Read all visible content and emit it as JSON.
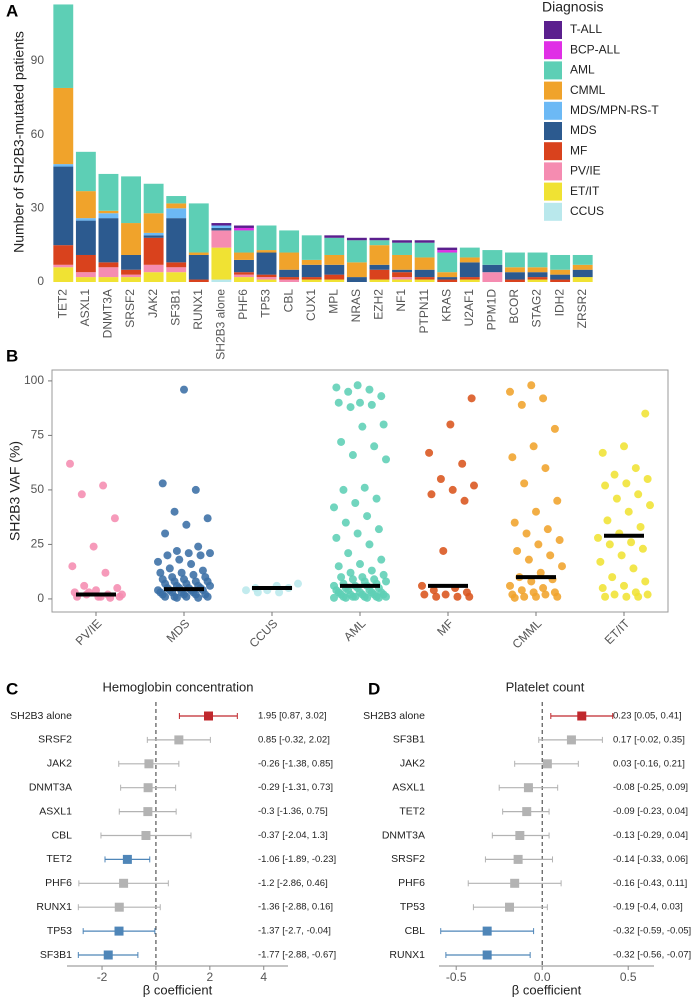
{
  "chart_data": [
    {
      "type": "bar",
      "stacked": true,
      "label": "A",
      "ylabel": "Number of SH2B3-mutated patients",
      "legend_title": "Diagnosis",
      "legend": "top-right",
      "categories": [
        "TET2",
        "ASXL1",
        "DNMT3A",
        "SRSF2",
        "JAK2",
        "SF3B1",
        "RUNX1",
        "SH2B3 alone",
        "PHF6",
        "TP53",
        "CBL",
        "CUX1",
        "MPL",
        "NRAS",
        "EZH2",
        "NF1",
        "PTPN11",
        "KRAS",
        "U2AF1",
        "PPM1D",
        "BCOR",
        "STAG2",
        "IDH2",
        "ZRSR2"
      ],
      "series": [
        {
          "name": "T-ALL",
          "color": "#5b1f8e",
          "values": [
            0,
            0,
            0,
            0,
            0,
            0,
            0,
            1,
            1,
            0,
            0,
            0,
            1,
            1,
            1,
            1,
            1,
            1,
            0,
            0,
            0,
            0,
            0,
            0
          ]
        },
        {
          "name": "BCP-ALL",
          "color": "#e02fe6",
          "values": [
            0,
            0,
            0,
            0,
            0,
            0,
            0,
            0,
            1,
            0,
            0,
            0,
            0,
            0,
            0,
            0,
            0,
            1,
            0,
            0,
            0,
            0,
            0,
            0
          ]
        },
        {
          "name": "AML",
          "color": "#5dcfb5",
          "values": [
            34,
            16,
            15,
            19,
            12,
            3,
            20,
            0,
            9,
            10,
            9,
            10,
            7,
            9,
            2,
            5,
            6,
            8,
            4,
            6,
            6,
            6,
            6,
            4
          ]
        },
        {
          "name": "CMML",
          "color": "#f0a32b",
          "values": [
            31,
            11,
            1,
            13,
            8,
            2,
            1,
            0,
            3,
            1,
            7,
            2,
            4,
            6,
            8,
            6,
            5,
            2,
            2,
            0,
            2,
            2,
            2,
            2
          ]
        },
        {
          "name": "MDS/MPN-RS-T",
          "color": "#6cb9f5",
          "values": [
            1,
            1,
            2,
            0,
            1,
            4,
            0,
            1,
            0,
            0,
            0,
            0,
            0,
            0,
            0,
            0,
            0,
            0,
            0,
            0,
            0,
            0,
            0,
            0
          ]
        },
        {
          "name": "MDS",
          "color": "#2c5a8f",
          "values": [
            32,
            14,
            18,
            6,
            1,
            18,
            10,
            1,
            5,
            9,
            3,
            5,
            4,
            2,
            2,
            1,
            3,
            1,
            6,
            3,
            3,
            2,
            2,
            3
          ]
        },
        {
          "name": "MF",
          "color": "#d9421d",
          "values": [
            8,
            7,
            2,
            2,
            11,
            2,
            1,
            0,
            1,
            1,
            1,
            1,
            2,
            0,
            4,
            2,
            1,
            1,
            1,
            0,
            1,
            1,
            1,
            0
          ]
        },
        {
          "name": "PV/IE",
          "color": "#f58cb1",
          "values": [
            1,
            2,
            4,
            1,
            3,
            2,
            0,
            7,
            1,
            1,
            1,
            0,
            0,
            0,
            0,
            1,
            0,
            0,
            0,
            4,
            0,
            0,
            0,
            0
          ]
        },
        {
          "name": "ET/IT",
          "color": "#f0e233",
          "values": [
            6,
            2,
            2,
            2,
            4,
            4,
            0,
            13,
            2,
            1,
            0,
            1,
            1,
            0,
            1,
            1,
            1,
            0,
            1,
            0,
            0,
            1,
            0,
            2
          ]
        },
        {
          "name": "CCUS",
          "color": "#b9e8ec",
          "values": [
            0,
            0,
            0,
            0,
            0,
            0,
            0,
            1,
            0,
            0,
            0,
            0,
            0,
            0,
            0,
            0,
            0,
            0,
            0,
            0,
            0,
            0,
            0,
            0
          ]
        }
      ],
      "ylim": [
        0,
        114
      ],
      "yticks": [
        0,
        30,
        60,
        90
      ]
    },
    {
      "type": "strip",
      "label": "B",
      "ylabel": "SH2B3 VAF (%)",
      "categories": [
        "PV/IE",
        "MDS",
        "CCUS",
        "AML",
        "MF",
        "CMML",
        "ET/IT"
      ],
      "colors": [
        "#f58cb1",
        "#3a6ea5",
        "#b9e8ec",
        "#5dcfb5",
        "#d9541d",
        "#f0a32b",
        "#f0e233"
      ],
      "points": [
        [
          62,
          52,
          48,
          37,
          24,
          15,
          12,
          6,
          5,
          4,
          3,
          2,
          2,
          1,
          1,
          1,
          0.5,
          3,
          2,
          1
        ],
        [
          96,
          53,
          50,
          40,
          37,
          34,
          30,
          24,
          22,
          21,
          21,
          20,
          20,
          18,
          17,
          16,
          14,
          13,
          12,
          12,
          11,
          10,
          10,
          9,
          9,
          8,
          8,
          8,
          7,
          7,
          6,
          6,
          6,
          5,
          5,
          5,
          5,
          4,
          4,
          4,
          4,
          3,
          3,
          3,
          3,
          2,
          2,
          2,
          2,
          1,
          1,
          1,
          1,
          0.5,
          0.5
        ],
        [
          7,
          6,
          5,
          5,
          4,
          4,
          3,
          3
        ],
        [
          98,
          97,
          96,
          95,
          93,
          90,
          90,
          89,
          88,
          80,
          79,
          72,
          70,
          66,
          64,
          51,
          50,
          46,
          44,
          42,
          38,
          35,
          32,
          30,
          28,
          25,
          21,
          18,
          16,
          15,
          13,
          12,
          11,
          10,
          10,
          9,
          9,
          8,
          8,
          7,
          7,
          6,
          6,
          6,
          5,
          5,
          5,
          4,
          4,
          4,
          3,
          3,
          3,
          3,
          2,
          2,
          2,
          2,
          2,
          1,
          1,
          1,
          1,
          1,
          1,
          0.5,
          0.5,
          0.5,
          0.5
        ],
        [
          92,
          80,
          67,
          62,
          55,
          52,
          50,
          48,
          45,
          22,
          6,
          5,
          4,
          3,
          2,
          2,
          1,
          1,
          1
        ],
        [
          98,
          95,
          92,
          89,
          78,
          70,
          65,
          60,
          53,
          45,
          40,
          35,
          32,
          30,
          27,
          25,
          22,
          20,
          18,
          15,
          12,
          10,
          9,
          8,
          6,
          5,
          4,
          3,
          3,
          2,
          2,
          1,
          1,
          1,
          0.5
        ],
        [
          85,
          70,
          67,
          60,
          57,
          55,
          53,
          52,
          48,
          46,
          43,
          40,
          36,
          33,
          30,
          28,
          26,
          25,
          23,
          20,
          17,
          14,
          10,
          8,
          6,
          5,
          3,
          2,
          2,
          1,
          1,
          1
        ]
      ],
      "medians": [
        2,
        4.5,
        5,
        6,
        6,
        10,
        29
      ],
      "ylim": [
        -6,
        105
      ],
      "yticks": [
        0,
        25,
        50,
        75,
        100
      ]
    },
    {
      "type": "forest",
      "label": "C",
      "title": "Hemoglobin concentration",
      "xlabel": "β coefficient",
      "categories": [
        "SH2B3 alone",
        "SRSF2",
        "JAK2",
        "DNMT3A",
        "ASXL1",
        "CBL",
        "TET2",
        "PHF6",
        "RUNX1",
        "TP53",
        "SF3B1"
      ],
      "values": [
        1.95,
        0.85,
        -0.26,
        -0.29,
        -0.3,
        -0.37,
        -1.06,
        -1.2,
        -1.36,
        -1.37,
        -1.77
      ],
      "lower": [
        0.87,
        -0.32,
        -1.38,
        -1.31,
        -1.36,
        -2.04,
        -1.89,
        -2.86,
        -2.88,
        -2.7,
        -2.88
      ],
      "upper": [
        3.02,
        2.02,
        0.85,
        0.73,
        0.75,
        1.3,
        -0.23,
        0.46,
        0.16,
        -0.04,
        -0.67
      ],
      "value_labels": [
        "1.95 [0.87, 3.02]",
        "0.85 [-0.32, 2.02]",
        "-0.26 [-1.38, 0.85]",
        "-0.29 [-1.31, 0.73]",
        "-0.3 [-1.36, 0.75]",
        "-0.37 [-2.04, 1.3]",
        "-1.06 [-1.89, -0.23]",
        "-1.2 [-2.86, 0.46]",
        "-1.36 [-2.88, 0.16]",
        "-1.37 [-2.7, -0.04]",
        "-1.77 [-2.88, -0.67]"
      ],
      "colors": [
        "#c0282d",
        "#b3b3b3",
        "#b3b3b3",
        "#b3b3b3",
        "#b3b3b3",
        "#b3b3b3",
        "#4f86b8",
        "#b3b3b3",
        "#b3b3b3",
        "#4f86b8",
        "#4f86b8"
      ],
      "xlim": [
        -3.3,
        4.9
      ],
      "xticks": [
        -2,
        0,
        2,
        4
      ]
    },
    {
      "type": "forest",
      "label": "D",
      "title": "Platelet count",
      "xlabel": "β coefficient",
      "categories": [
        "SH2B3 alone",
        "SF3B1",
        "JAK2",
        "ASXL1",
        "TET2",
        "DNMT3A",
        "SRSF2",
        "PHF6",
        "TP53",
        "CBL",
        "RUNX1"
      ],
      "values": [
        0.23,
        0.17,
        0.03,
        -0.08,
        -0.09,
        -0.13,
        -0.14,
        -0.16,
        -0.19,
        -0.32,
        -0.32
      ],
      "lower": [
        0.05,
        -0.02,
        -0.16,
        -0.25,
        -0.23,
        -0.29,
        -0.33,
        -0.43,
        -0.4,
        -0.59,
        -0.56
      ],
      "upper": [
        0.41,
        0.35,
        0.21,
        0.09,
        0.04,
        0.04,
        0.06,
        0.11,
        0.03,
        -0.05,
        -0.07
      ],
      "value_labels": [
        "0.23 [0.05, 0.41]",
        "0.17 [-0.02, 0.35]",
        "0.03 [-0.16, 0.21]",
        "-0.08 [-0.25, 0.09]",
        "-0.09 [-0.23, 0.04]",
        "-0.13 [-0.29, 0.04]",
        "-0.14 [-0.33, 0.06]",
        "-0.16 [-0.43, 0.11]",
        "-0.19 [-0.4, 0.03]",
        "-0.32 [-0.59, -0.05]",
        "-0.32 [-0.56, -0.07]"
      ],
      "colors": [
        "#c0282d",
        "#b3b3b3",
        "#b3b3b3",
        "#b3b3b3",
        "#b3b3b3",
        "#b3b3b3",
        "#b3b3b3",
        "#b3b3b3",
        "#b3b3b3",
        "#4f86b8",
        "#4f86b8"
      ],
      "xlim": [
        -0.6,
        0.65
      ],
      "xticks": [
        -0.5,
        {
          "value": 0,
          "label": "0.0"
        },
        0.5
      ]
    }
  ]
}
